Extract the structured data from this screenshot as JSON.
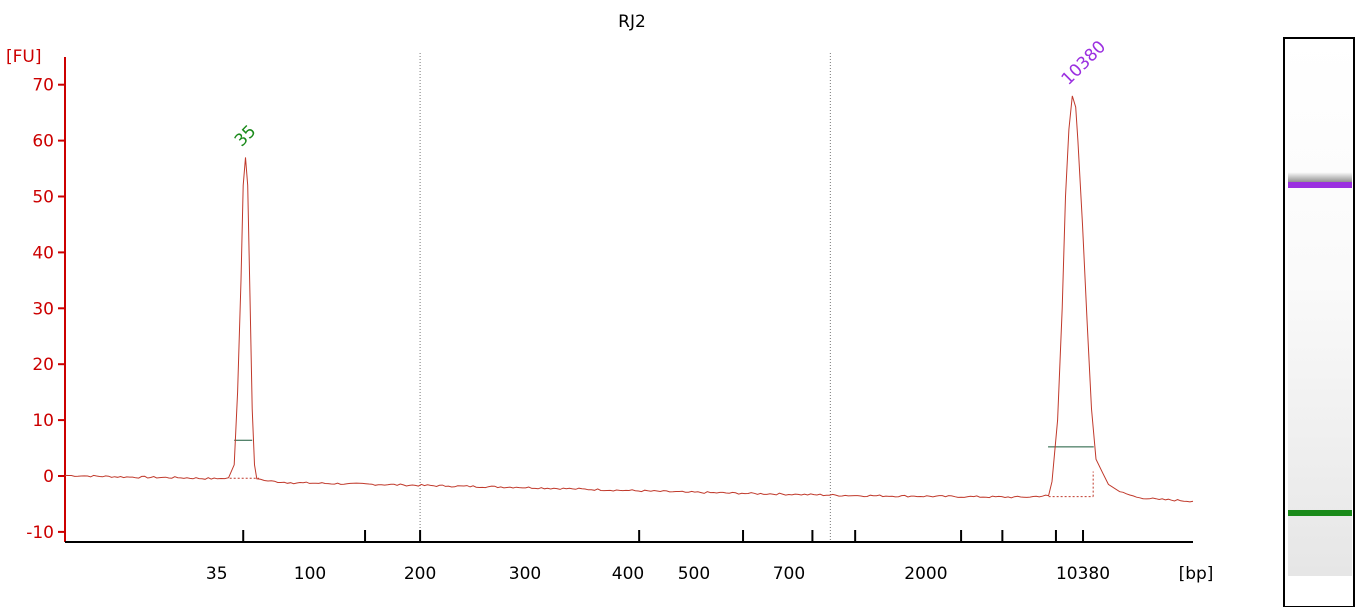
{
  "chart_data": {
    "type": "line",
    "title": "RJ2",
    "ylabel": "[FU]",
    "xlabel": "[bp]",
    "ylim": [
      -10,
      70
    ],
    "y_ticks": [
      -10,
      0,
      10,
      20,
      30,
      40,
      50,
      60,
      70
    ],
    "x_tick_labels": [
      "35",
      "100",
      "200",
      "300",
      "400",
      "500",
      "700",
      "2000",
      "10380"
    ],
    "grid": "dotted vertical lines at 200 and between 700 and 2000",
    "colors": {
      "trace": "#c0392b",
      "axis_y": "#cc0000",
      "axis_x": "#000000",
      "marker_low": "#1a8a1a",
      "marker_high": "#9b30e0"
    },
    "series": [
      {
        "values": [
          [
            0,
            0.1
          ],
          [
            0.02,
            0.0
          ],
          [
            0.06,
            -0.2
          ],
          [
            0.1,
            -0.3
          ],
          [
            0.135,
            -0.5
          ],
          [
            0.145,
            -0.3
          ],
          [
            0.15,
            2
          ],
          [
            0.153,
            15
          ],
          [
            0.156,
            35
          ],
          [
            0.158,
            52
          ],
          [
            0.16,
            57
          ],
          [
            0.162,
            52
          ],
          [
            0.164,
            32
          ],
          [
            0.166,
            12
          ],
          [
            0.168,
            2
          ],
          [
            0.17,
            -0.5
          ],
          [
            0.18,
            -0.9
          ],
          [
            0.2,
            -1.2
          ],
          [
            0.25,
            -1.4
          ],
          [
            0.3,
            -1.6
          ],
          [
            0.34,
            -1.8
          ],
          [
            0.4,
            -2.0
          ],
          [
            0.45,
            -2.3
          ],
          [
            0.5,
            -2.6
          ],
          [
            0.55,
            -2.9
          ],
          [
            0.6,
            -3.1
          ],
          [
            0.65,
            -3.3
          ],
          [
            0.7,
            -3.5
          ],
          [
            0.75,
            -3.6
          ],
          [
            0.8,
            -3.7
          ],
          [
            0.85,
            -3.8
          ],
          [
            0.872,
            -3.5
          ],
          [
            0.875,
            -1
          ],
          [
            0.88,
            10
          ],
          [
            0.884,
            30
          ],
          [
            0.887,
            50
          ],
          [
            0.89,
            62
          ],
          [
            0.893,
            68
          ],
          [
            0.896,
            66
          ],
          [
            0.898,
            60
          ],
          [
            0.902,
            45
          ],
          [
            0.906,
            28
          ],
          [
            0.91,
            12
          ],
          [
            0.914,
            3
          ],
          [
            0.92,
            0.5
          ],
          [
            0.925,
            -1.5
          ],
          [
            0.935,
            -2.8
          ],
          [
            0.95,
            -3.8
          ],
          [
            0.97,
            -4.2
          ],
          [
            1.0,
            -4.5
          ]
        ]
      }
    ],
    "peaks": [
      {
        "label": "35",
        "x": 0.16,
        "y": 57,
        "color": "marker_low"
      },
      {
        "label": "10380",
        "x": 0.893,
        "y": 68,
        "color": "marker_high"
      }
    ]
  }
}
